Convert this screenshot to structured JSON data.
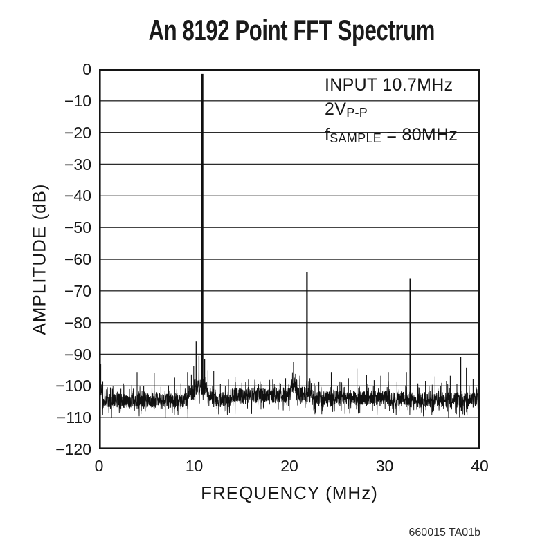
{
  "title": "An 8192 Point FFT Spectrum",
  "caption": "660015 TA01b",
  "colors": {
    "trace": "#101010",
    "grid": "#2b2b2b",
    "border": "#141414",
    "text": "#161616",
    "background": "#ffffff"
  },
  "chart_data": {
    "type": "line",
    "title": "An 8192 Point FFT Spectrum",
    "xlabel": "FREQUENCY (MHz)",
    "ylabel": "AMPLITUDE (dB)",
    "xlim": [
      0,
      40
    ],
    "ylim": [
      -120,
      0
    ],
    "x_ticks": [
      0,
      10,
      20,
      30,
      40
    ],
    "x_tick_labels": [
      "0",
      "10",
      "20",
      "30",
      "40"
    ],
    "y_ticks": [
      0,
      -10,
      -20,
      -30,
      -40,
      -50,
      -60,
      -70,
      -80,
      -90,
      -100,
      -110,
      -120
    ],
    "y_tick_labels": [
      "0",
      "−10",
      "−20",
      "−30",
      "−40",
      "−50",
      "−60",
      "−70",
      "−80",
      "−90",
      "−100",
      "−110",
      "−120"
    ],
    "grid": "horizontal",
    "legend": "none",
    "annotations": [
      {
        "parts": [
          {
            "text": "INPUT 10.7MHz"
          }
        ]
      },
      {
        "parts": [
          {
            "text": "2V"
          },
          {
            "text": "P-P",
            "sub": true
          }
        ]
      },
      {
        "parts": [
          {
            "text": "f"
          },
          {
            "text": "SAMPLE",
            "sub": true
          },
          {
            "text": " = 80MHz"
          }
        ]
      }
    ],
    "signal_summary": {
      "input_frequency_mhz": 10.7,
      "input_level": "2V P-P",
      "sample_rate_mhz": 80,
      "fft_points": 8192,
      "fundamental_db": -1.5,
      "second_harmonic_db": -64,
      "third_harmonic_db": -66,
      "noise_floor_db": -104
    },
    "noise_segments": [
      {
        "from": 0.0,
        "to": 0.3,
        "mean_db": -100.5
      },
      {
        "from": 0.3,
        "to": 9.35,
        "mean_db": -104.6
      },
      {
        "from": 9.35,
        "to": 10.1,
        "mean_db": -102.0
      },
      {
        "from": 10.1,
        "to": 11.3,
        "mean_db": -100.2
      },
      {
        "from": 11.3,
        "to": 12.0,
        "mean_db": -103.0
      },
      {
        "from": 12.0,
        "to": 14.0,
        "mean_db": -104.2
      },
      {
        "from": 14.0,
        "to": 20.1,
        "mean_db": -102.8
      },
      {
        "from": 20.1,
        "to": 20.75,
        "mean_db": -99.8
      },
      {
        "from": 20.75,
        "to": 21.7,
        "mean_db": -102.3
      },
      {
        "from": 21.7,
        "to": 22.4,
        "mean_db": -102.6
      },
      {
        "from": 22.4,
        "to": 30.5,
        "mean_db": -103.8
      },
      {
        "from": 30.5,
        "to": 36.0,
        "mean_db": -104.2
      },
      {
        "from": 36.0,
        "to": 40.0,
        "mean_db": -104.3
      }
    ],
    "noise_jitter_db": 2.3,
    "spurs": [
      [
        0.18,
        -93,
        1.2
      ],
      [
        0.4,
        -98.5
      ],
      [
        1.2,
        -100.5
      ],
      [
        2.3,
        -100.9
      ],
      [
        3.2,
        -101
      ],
      [
        4.0,
        -95.6
      ],
      [
        4.7,
        -100
      ],
      [
        5.8,
        -96
      ],
      [
        6.5,
        -100.3
      ],
      [
        7.3,
        -99.8
      ],
      [
        7.95,
        -97.4
      ],
      [
        8.6,
        -99.2
      ],
      [
        9.3,
        -95.6
      ],
      [
        9.7,
        -96.4
      ],
      [
        9.95,
        -93.6
      ],
      [
        10.2,
        -86,
        1.3
      ],
      [
        10.5,
        -90.5,
        1.3
      ],
      [
        10.85,
        -1.5,
        3,
        "fundamental"
      ],
      [
        11.1,
        -91.5,
        1.3
      ],
      [
        11.45,
        -95
      ],
      [
        12.05,
        -95.2
      ],
      [
        12.75,
        -99.3
      ],
      [
        13.6,
        -98
      ],
      [
        14.3,
        -97.2
      ],
      [
        15.0,
        -99
      ],
      [
        15.7,
        -98
      ],
      [
        16.4,
        -98.6
      ],
      [
        17.1,
        -99.3
      ],
      [
        18.25,
        -98
      ],
      [
        19.0,
        -99
      ],
      [
        19.6,
        -97.6
      ],
      [
        20.45,
        -92.3,
        1.6
      ],
      [
        20.65,
        -96.2
      ],
      [
        21.1,
        -96.8
      ],
      [
        21.85,
        -64,
        2.2,
        "second-harmonic"
      ],
      [
        22.15,
        -97.6
      ],
      [
        23.1,
        -98.6
      ],
      [
        24.4,
        -95.6
      ],
      [
        25.3,
        -98.6
      ],
      [
        26.2,
        -97.6
      ],
      [
        27.1,
        -94.6
      ],
      [
        28.1,
        -96.6
      ],
      [
        28.9,
        -98.2
      ],
      [
        29.6,
        -96.8
      ],
      [
        30.4,
        -95.6
      ],
      [
        31.3,
        -98.6
      ],
      [
        32.3,
        -95.6
      ],
      [
        32.7,
        -66,
        2.2,
        "third-harmonic"
      ],
      [
        33.5,
        -99.2
      ],
      [
        34.3,
        -98.4
      ],
      [
        35.3,
        -97
      ],
      [
        36.0,
        -99
      ],
      [
        36.5,
        -98.4
      ],
      [
        36.9,
        -96.8
      ],
      [
        37.6,
        -99.3
      ],
      [
        38.0,
        -90.8,
        1.4
      ],
      [
        38.6,
        -94.2,
        1.4
      ],
      [
        39.3,
        -97.8
      ]
    ]
  }
}
